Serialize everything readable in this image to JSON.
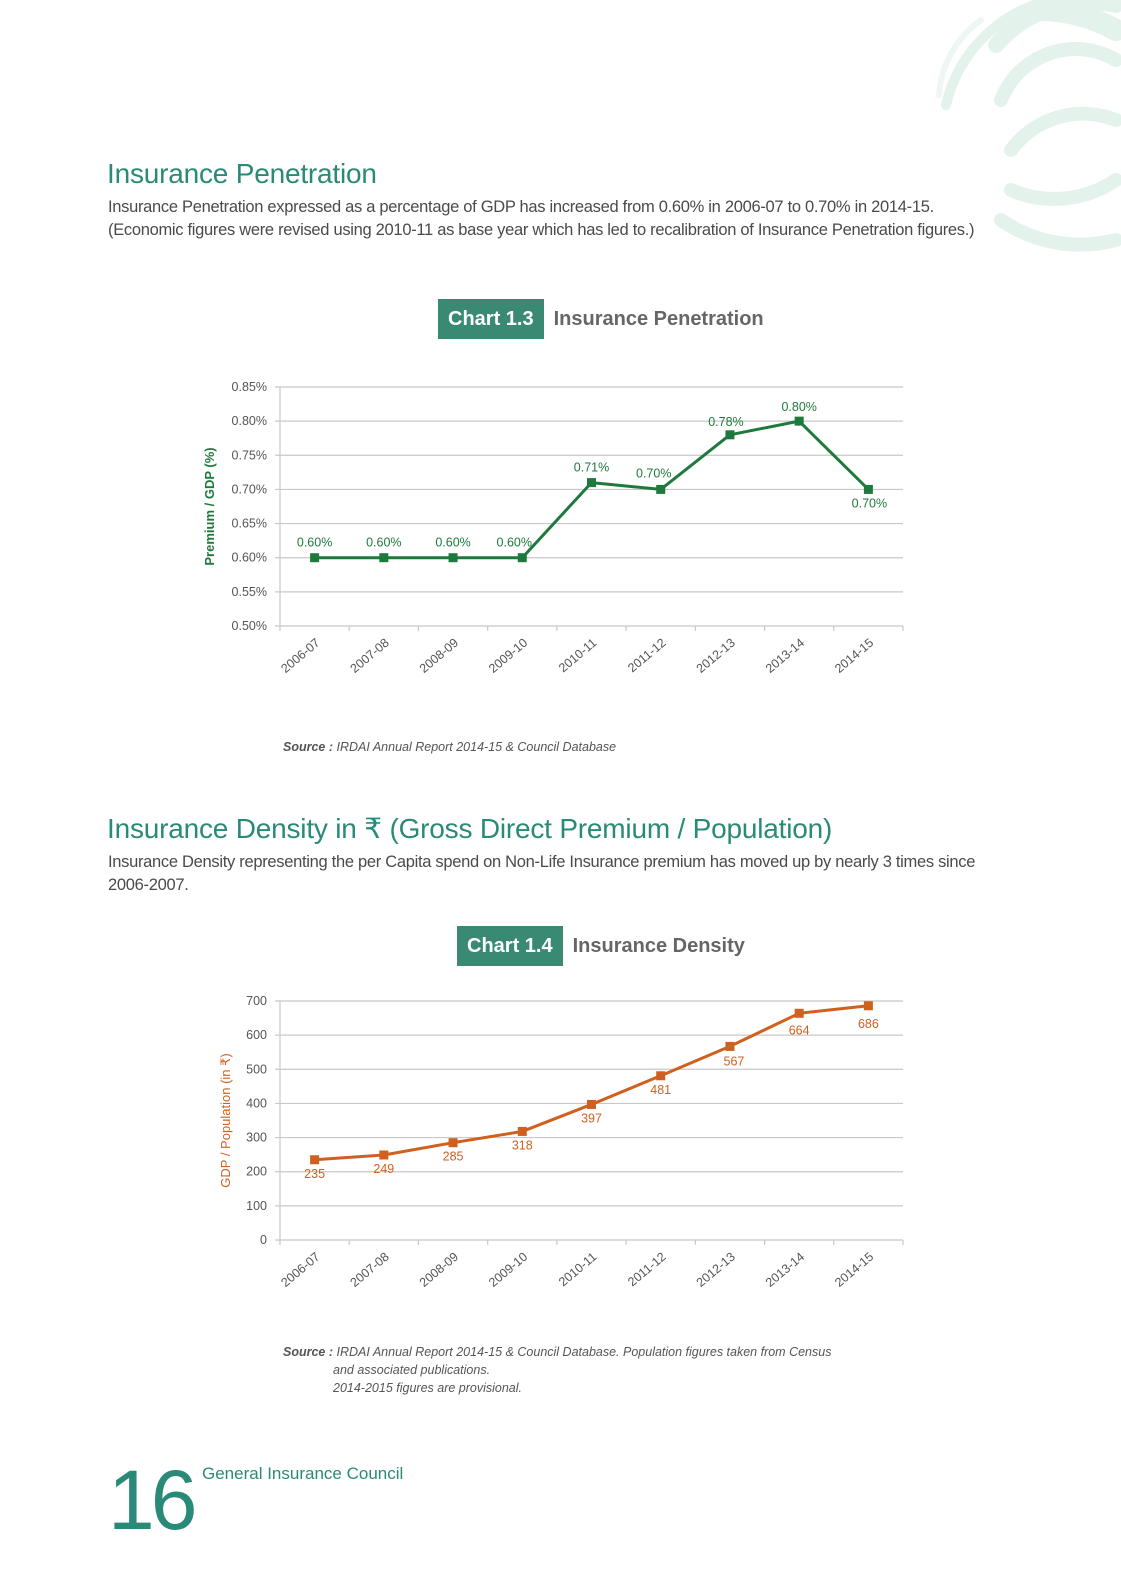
{
  "section1": {
    "title": "Insurance Penetration",
    "text": "Insurance Penetration expressed as a percentage of GDP has increased from 0.60% in 2006-07 to 0.70% in 2014-15. (Economic figures were revised using 2010-11 as base year which has led to recalibration of Insurance Penetration figures.)"
  },
  "chart1": {
    "badge": "Chart 1.3",
    "title": "Insurance Penetration",
    "source_label": "Source :",
    "source_text": "IRDAI Annual Report 2014-15 & Council Database"
  },
  "section2": {
    "title": "Insurance Density in ₹ (Gross Direct Premium / Population)",
    "text": "Insurance Density representing the per Capita spend on Non-Life Insurance premium has moved up by nearly 3 times since 2006-2007."
  },
  "chart2": {
    "badge": "Chart 1.4",
    "title": "Insurance Density",
    "source_label": "Source :",
    "source_text": "IRDAI Annual Report 2014-15 & Council Database. Population figures taken from Census",
    "source_text2": "and associated publications.",
    "source_text3": "2014-2015 figures are provisional."
  },
  "footer": {
    "page_number": "16",
    "title": "General Insurance Council"
  },
  "chart_data": [
    {
      "type": "line",
      "title": "Insurance Penetration",
      "xlabel": "",
      "ylabel": "Premium / GDP (%)",
      "categories": [
        "2006-07",
        "2007-08",
        "2008-09",
        "2009-10",
        "2010-11",
        "2011-12",
        "2012-13",
        "2013-14",
        "2014-15"
      ],
      "values": [
        0.6,
        0.6,
        0.6,
        0.6,
        0.71,
        0.7,
        0.78,
        0.8,
        0.7
      ],
      "labels": [
        "0.60%",
        "0.60%",
        "0.60%",
        "0.60%",
        "0.71%",
        "0.70%",
        "0.78%",
        "0.80%",
        "0.70%"
      ],
      "yticks": [
        0.5,
        0.55,
        0.6,
        0.65,
        0.7,
        0.75,
        0.8,
        0.85
      ],
      "ytick_labels": [
        "0.50%",
        "0.55%",
        "0.60%",
        "0.65%",
        "0.70%",
        "0.75%",
        "0.80%",
        "0.85%"
      ],
      "ylim": [
        0.5,
        0.85
      ],
      "color": "#1e7a3c",
      "grid": true,
      "legend": "none"
    },
    {
      "type": "line",
      "title": "Insurance Density",
      "xlabel": "",
      "ylabel": "GDP / Population (in ₹)",
      "categories": [
        "2006-07",
        "2007-08",
        "2008-09",
        "2009-10",
        "2010-11",
        "2011-12",
        "2012-13",
        "2013-14",
        "2014-15"
      ],
      "values": [
        235,
        249,
        285,
        318,
        397,
        481,
        567,
        664,
        686
      ],
      "labels": [
        "235",
        "249",
        "285",
        "318",
        "397",
        "481",
        "567",
        "664",
        "686"
      ],
      "yticks": [
        0,
        100,
        200,
        300,
        400,
        500,
        600,
        700
      ],
      "ytick_labels": [
        "0",
        "100",
        "200",
        "300",
        "400",
        "500",
        "600",
        "700"
      ],
      "ylim": [
        0,
        700
      ],
      "color": "#d0601e",
      "grid": true,
      "legend": "none"
    }
  ]
}
